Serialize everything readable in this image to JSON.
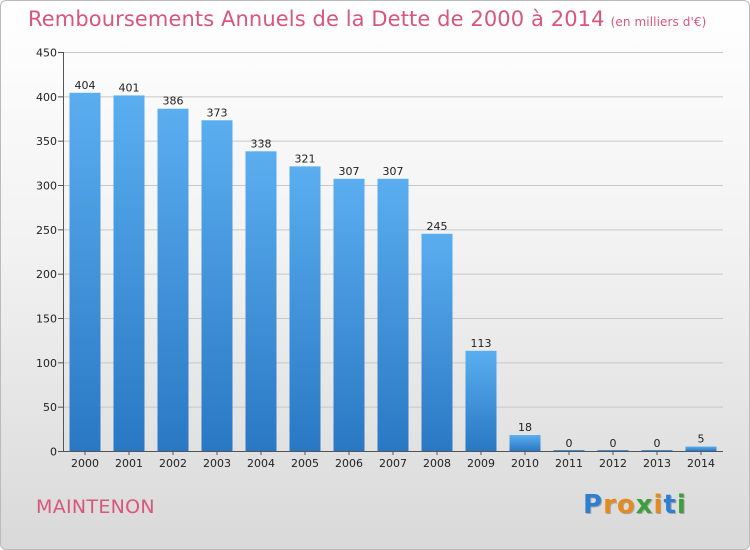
{
  "chart_data": {
    "type": "bar",
    "title": "Remboursements Annuels de la Dette de 2000 à 2014",
    "subtitle": "(en milliers d'€)",
    "categories": [
      "2000",
      "2001",
      "2002",
      "2003",
      "2004",
      "2005",
      "2006",
      "2007",
      "2008",
      "2009",
      "2010",
      "2011",
      "2012",
      "2013",
      "2014"
    ],
    "values": [
      404,
      401,
      386,
      373,
      338,
      321,
      307,
      307,
      245,
      113,
      18,
      0,
      0,
      0,
      5
    ],
    "ylim": [
      0,
      450
    ],
    "yticks": [
      0,
      50,
      100,
      150,
      200,
      250,
      300,
      350,
      400,
      450
    ],
    "xlabel": "",
    "ylabel": "",
    "grid": true,
    "bar_color": "#3d8fd8"
  },
  "city": "MAINTENON",
  "logo": {
    "letters": [
      {
        "ch": "P",
        "color": "#2e7fd0"
      },
      {
        "ch": "r",
        "color": "#e58a1f"
      },
      {
        "ch": "o",
        "color": "#e58a1f"
      },
      {
        "ch": "x",
        "color": "#3d9e3a"
      },
      {
        "ch": "i",
        "color": "#e58a1f"
      },
      {
        "ch": "t",
        "color": "#2e7fd0"
      },
      {
        "ch": "i",
        "color": "#3d9e3a"
      }
    ]
  }
}
